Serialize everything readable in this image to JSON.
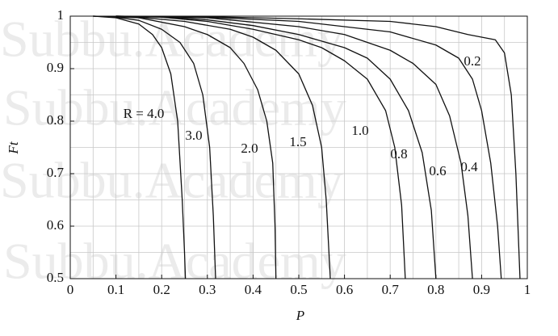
{
  "chart_data": {
    "type": "line",
    "watermark": "Subbu.Academy",
    "x_label": "P",
    "y_label": "Ft",
    "xlim": [
      0,
      1
    ],
    "ylim": [
      0.5,
      1
    ],
    "xticks": [
      0,
      0.1,
      0.2,
      0.3,
      0.4,
      0.5,
      0.6,
      0.7,
      0.8,
      0.9,
      1
    ],
    "yticks": [
      0.5,
      0.6,
      0.7,
      0.8,
      0.9,
      1
    ],
    "grid": true,
    "color": "#111111",
    "series": [
      {
        "name": "R = 4.0",
        "x": [
          0.05,
          0.1,
          0.15,
          0.18,
          0.2,
          0.22,
          0.235,
          0.245,
          0.25,
          0.252
        ],
        "values": [
          1,
          0.997,
          0.985,
          0.965,
          0.94,
          0.89,
          0.8,
          0.65,
          0.55,
          0.5
        ]
      },
      {
        "name": "3.0",
        "x": [
          0.05,
          0.1,
          0.15,
          0.2,
          0.24,
          0.27,
          0.29,
          0.305,
          0.313,
          0.318
        ],
        "values": [
          1,
          0.998,
          0.992,
          0.975,
          0.95,
          0.91,
          0.85,
          0.75,
          0.62,
          0.5
        ]
      },
      {
        "name": "2.0",
        "x": [
          0.05,
          0.15,
          0.25,
          0.3,
          0.35,
          0.38,
          0.41,
          0.43,
          0.443,
          0.448,
          0.45
        ],
        "values": [
          1,
          0.997,
          0.98,
          0.965,
          0.94,
          0.91,
          0.86,
          0.8,
          0.72,
          0.6,
          0.5
        ]
      },
      {
        "name": "1.5",
        "x": [
          0.05,
          0.15,
          0.25,
          0.35,
          0.4,
          0.45,
          0.5,
          0.53,
          0.55,
          0.56,
          0.569
        ],
        "values": [
          1,
          0.998,
          0.99,
          0.975,
          0.96,
          0.935,
          0.89,
          0.83,
          0.75,
          0.65,
          0.5
        ]
      },
      {
        "name": "1.0",
        "x": [
          0.1,
          0.2,
          0.3,
          0.4,
          0.5,
          0.55,
          0.6,
          0.65,
          0.69,
          0.71,
          0.725,
          0.733
        ],
        "values": [
          1,
          0.998,
          0.99,
          0.975,
          0.955,
          0.94,
          0.915,
          0.88,
          0.82,
          0.75,
          0.64,
          0.5
        ]
      },
      {
        "name": "0.8",
        "x": [
          0.1,
          0.2,
          0.3,
          0.4,
          0.5,
          0.6,
          0.65,
          0.7,
          0.74,
          0.77,
          0.79,
          0.8
        ],
        "values": [
          1,
          0.999,
          0.993,
          0.982,
          0.965,
          0.94,
          0.92,
          0.88,
          0.82,
          0.74,
          0.63,
          0.5
        ]
      },
      {
        "name": "0.6",
        "x": [
          0.1,
          0.3,
          0.5,
          0.6,
          0.7,
          0.75,
          0.8,
          0.83,
          0.855,
          0.87,
          0.88
        ],
        "values": [
          1,
          0.997,
          0.98,
          0.965,
          0.935,
          0.91,
          0.87,
          0.81,
          0.72,
          0.62,
          0.5
        ]
      },
      {
        "name": "0.4",
        "x": [
          0.1,
          0.3,
          0.5,
          0.7,
          0.8,
          0.85,
          0.88,
          0.9,
          0.92,
          0.935,
          0.943
        ],
        "values": [
          1,
          0.998,
          0.99,
          0.97,
          0.945,
          0.92,
          0.88,
          0.82,
          0.72,
          0.6,
          0.5
        ]
      },
      {
        "name": "0.2",
        "x": [
          0.1,
          0.3,
          0.5,
          0.7,
          0.8,
          0.87,
          0.9,
          0.93,
          0.95,
          0.965,
          0.975,
          0.984
        ],
        "values": [
          1,
          0.999,
          0.995,
          0.99,
          0.98,
          0.965,
          0.96,
          0.955,
          0.93,
          0.85,
          0.7,
          0.5
        ]
      }
    ]
  }
}
